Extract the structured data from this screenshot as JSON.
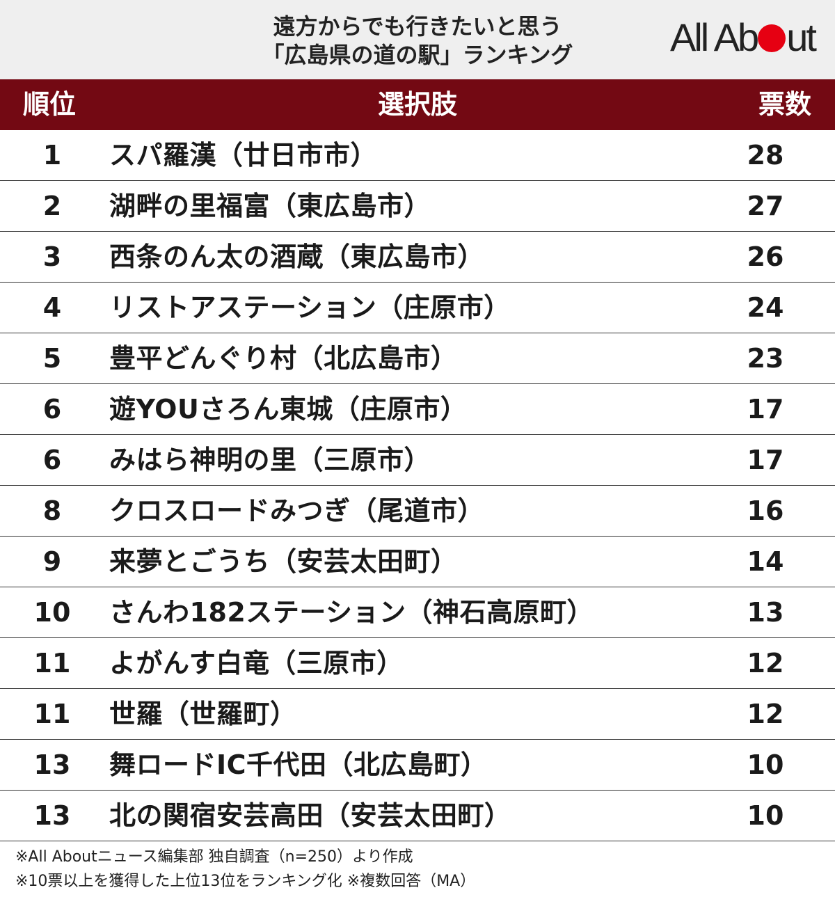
{
  "header": {
    "title_line1": "遠方からでも行きたいと思う",
    "title_line2": "「広島県の道の駅」ランキング",
    "logo_pre": "All Ab",
    "logo_post": "ut",
    "logo_dot_color": "#e60012"
  },
  "table": {
    "header_color": "#730913",
    "columns": {
      "rank": "順位",
      "choice": "選択肢",
      "votes": "票数"
    },
    "rows": [
      {
        "rank": "1",
        "name": "スパ羅漢（廿日市市）",
        "votes": "28"
      },
      {
        "rank": "2",
        "name": "湖畔の里福富（東広島市）",
        "votes": "27"
      },
      {
        "rank": "3",
        "name": "西条のん太の酒蔵（東広島市）",
        "votes": "26"
      },
      {
        "rank": "4",
        "name": "リストアステーション（庄原市）",
        "votes": "24"
      },
      {
        "rank": "5",
        "name": "豊平どんぐり村（北広島市）",
        "votes": "23"
      },
      {
        "rank": "6",
        "name": "遊YOUさろん東城（庄原市）",
        "votes": "17"
      },
      {
        "rank": "6",
        "name": "みはら神明の里（三原市）",
        "votes": "17"
      },
      {
        "rank": "8",
        "name": "クロスロードみつぎ（尾道市）",
        "votes": "16"
      },
      {
        "rank": "9",
        "name": "来夢とごうち（安芸太田町）",
        "votes": "14"
      },
      {
        "rank": "10",
        "name": "さんわ182ステーション（神石高原町）",
        "votes": "13"
      },
      {
        "rank": "11",
        "name": "よがんす白竜（三原市）",
        "votes": "12"
      },
      {
        "rank": "11",
        "name": "世羅（世羅町）",
        "votes": "12"
      },
      {
        "rank": "13",
        "name": "舞ロードIC千代田（北広島町）",
        "votes": "10"
      },
      {
        "rank": "13",
        "name": "北の関宿安芸高田（安芸太田町）",
        "votes": "10"
      }
    ]
  },
  "notes": {
    "line1": "※All Aboutニュース編集部 独自調査（n=250）より作成",
    "line2": "※10票以上を獲得した上位13位をランキング化 ※複数回答（MA）"
  }
}
